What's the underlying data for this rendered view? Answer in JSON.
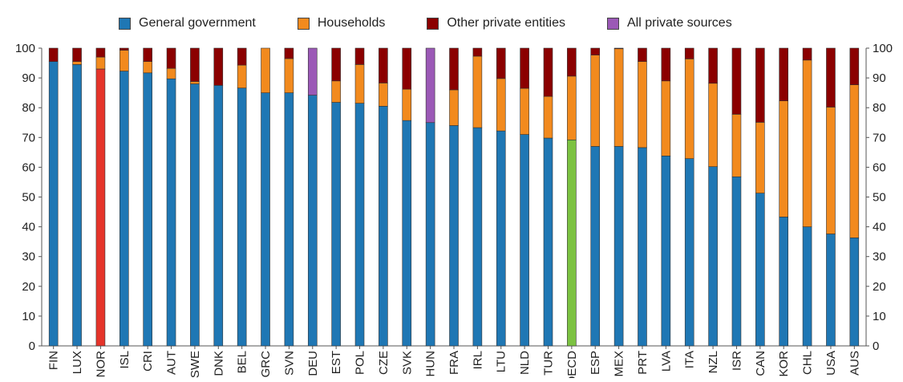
{
  "chart_data": {
    "type": "bar",
    "stacked": true,
    "title": "",
    "xlabel": "",
    "ylabel": "",
    "ylim": [
      0,
      100
    ],
    "yticks": [
      0,
      10,
      20,
      30,
      40,
      50,
      60,
      70,
      80,
      90,
      100
    ],
    "grid": false,
    "legend_position": "top",
    "categories": [
      "FIN",
      "LUX",
      "NOR",
      "ISL",
      "CRI",
      "AUT",
      "SWE",
      "DNK",
      "BEL",
      "GRC",
      "SVN",
      "DEU",
      "EST",
      "POL",
      "CZE",
      "SVK",
      "HUN",
      "FRA",
      "IRL",
      "LTU",
      "NLD",
      "TUR",
      "OECD",
      "ESP",
      "MEX",
      "PRT",
      "LVA",
      "ITA",
      "NZL",
      "ISR",
      "CAN",
      "KOR",
      "CHL",
      "USA",
      "AUS"
    ],
    "series": [
      {
        "name": "General government",
        "color": "#1f77b4",
        "values": [
          95.5,
          94.5,
          93,
          92.3,
          91.7,
          89.7,
          88,
          87.5,
          86.6,
          85,
          85,
          84.2,
          81.8,
          81.5,
          80.5,
          75.7,
          75,
          74,
          73.3,
          72.2,
          71,
          69.8,
          69.2,
          67,
          67,
          66.6,
          63.8,
          62.9,
          60.2,
          56.8,
          51.3,
          43.3,
          40,
          37.6,
          36.3
        ]
      },
      {
        "name": "Households",
        "color": "#f28a1e",
        "values": [
          0,
          1,
          4,
          7,
          3.8,
          3.5,
          0.8,
          0,
          7.7,
          15,
          11.5,
          0,
          7.2,
          13,
          7.8,
          10.5,
          0,
          12,
          24,
          17.6,
          15.5,
          14,
          21.4,
          30.7,
          32.8,
          28.9,
          25.2,
          33.5,
          28,
          21,
          23.8,
          39,
          56,
          42.6,
          51.4
        ]
      },
      {
        "name": "Other private entities",
        "color": "#8b0000",
        "values": [
          4.5,
          4.5,
          3,
          0.7,
          4.5,
          6.8,
          11.2,
          12.5,
          5.7,
          0,
          3.5,
          0,
          11,
          5.5,
          11.7,
          13.8,
          0,
          14,
          2.7,
          10.2,
          13.5,
          16.2,
          9.4,
          2.3,
          0.2,
          4.5,
          11,
          3.6,
          11.8,
          22.2,
          24.9,
          17.7,
          4,
          19.8,
          12.3
        ]
      },
      {
        "name": "All private sources",
        "color": "#9b59b6",
        "values": [
          0,
          0,
          0,
          0,
          0,
          0,
          0,
          0,
          0,
          0,
          0,
          15.8,
          0,
          0,
          0,
          0,
          25,
          0,
          0,
          0,
          0,
          0,
          0,
          0,
          0,
          0,
          0,
          0,
          0,
          0,
          0,
          0,
          0,
          0,
          0
        ]
      }
    ],
    "highlights": [
      {
        "category": "NOR",
        "color": "#e5342a"
      },
      {
        "category": "OECD",
        "color": "#7cc242"
      }
    ]
  }
}
